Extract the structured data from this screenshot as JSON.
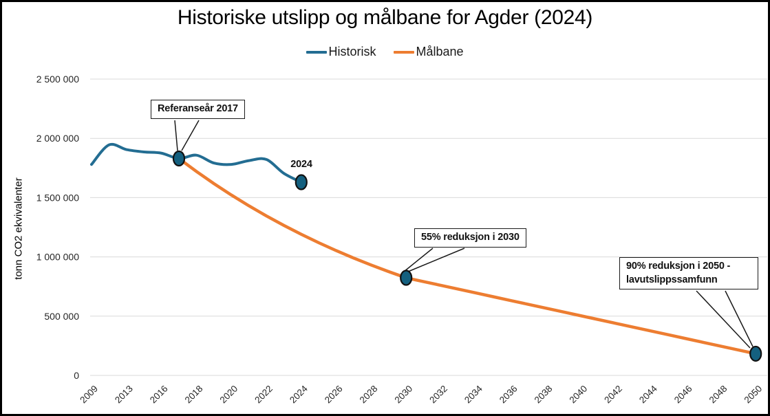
{
  "title": "Historiske utslipp og målbane for Agder (2024)",
  "legend": [
    {
      "label": "Historisk",
      "color": "#236D92"
    },
    {
      "label": "Målbane",
      "color": "#ED7D31"
    }
  ],
  "y_axis": {
    "title": "tonn CO2 ekvivalenter",
    "ticks": [
      {
        "label": "0",
        "value": 0
      },
      {
        "label": "500 000",
        "value": 500000
      },
      {
        "label": "1 000 000",
        "value": 1000000
      },
      {
        "label": "1 500 000",
        "value": 1500000
      },
      {
        "label": "2 000 000",
        "value": 2000000
      },
      {
        "label": "2 500 000",
        "value": 2500000
      }
    ]
  },
  "x_axis": {
    "tick_labels": [
      "2009",
      "2013",
      "2016",
      "2018",
      "2020",
      "2022",
      "2024",
      "2026",
      "2028",
      "2030",
      "2032",
      "2034",
      "2036",
      "2038",
      "2040",
      "2042",
      "2044",
      "2046",
      "2048",
      "2050"
    ]
  },
  "annotations": {
    "referansear": "Referanseår 2017",
    "point_2024": "2024",
    "reduksjon_2030": "55% reduksjon i 2030",
    "reduksjon_2050": "90% reduksjon i 2050 - lavutslippssamfunn"
  },
  "colors": {
    "historisk_line": "#236D92",
    "malbane_line": "#ED7D31",
    "marker_fill": "#14607F",
    "marker_stroke": "#111111",
    "gridline": "#D9D9D9",
    "frame_border": "#000000"
  },
  "chart_data": {
    "type": "line",
    "title": "Historiske utslipp og målbane for Agder (2024)",
    "xlabel": "",
    "ylabel": "tonn CO2 ekvivalenter",
    "ylim": [
      0,
      2500000
    ],
    "x_tick_labels": [
      "2009",
      "2013",
      "2016",
      "2018",
      "2020",
      "2022",
      "2024",
      "2026",
      "2028",
      "2030",
      "2032",
      "2034",
      "2036",
      "2038",
      "2040",
      "2042",
      "2044",
      "2046",
      "2048",
      "2050"
    ],
    "grid": "horizontal",
    "legend_position": "top-center",
    "series": [
      {
        "name": "Historisk",
        "color": "#236D92",
        "curve": "smooth",
        "points": [
          [
            2009,
            1780000
          ],
          [
            2011,
            1945000
          ],
          [
            2013,
            1905000
          ],
          [
            2015,
            1885000
          ],
          [
            2016,
            1875000
          ],
          [
            2017,
            1830000
          ],
          [
            2018,
            1858000
          ],
          [
            2019,
            1792000
          ],
          [
            2020,
            1780000
          ],
          [
            2021,
            1812000
          ],
          [
            2022,
            1822000
          ],
          [
            2023,
            1705000
          ],
          [
            2024,
            1630000
          ]
        ]
      },
      {
        "name": "Målbane",
        "color": "#ED7D31",
        "curve": "percent-decline 2017-2030, linear 2030-2050",
        "points": [
          [
            2017,
            1830000
          ],
          [
            2030,
            823500
          ],
          [
            2050,
            183000
          ]
        ]
      }
    ],
    "markers": [
      {
        "year": 2017,
        "value": 1830000,
        "annotation": "Referanseår 2017"
      },
      {
        "year": 2024,
        "value": 1630000,
        "annotation": "2024"
      },
      {
        "year": 2030,
        "value": 823500,
        "annotation": "55% reduksjon i 2030"
      },
      {
        "year": 2050,
        "value": 183000,
        "annotation": "90% reduksjon i 2050 - lavutslippssamfunn"
      }
    ]
  }
}
